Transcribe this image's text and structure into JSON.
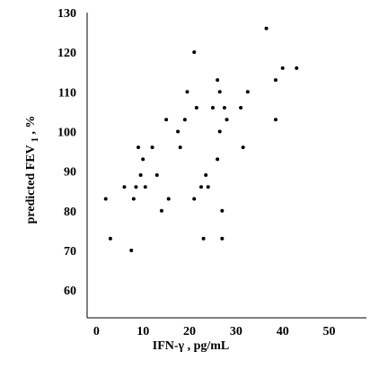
{
  "chart_data": {
    "type": "scatter",
    "title": "",
    "xlabel": "IFN-γ , pg/mL",
    "ylabel_main": "predicted FEV",
    "ylabel_sub": "1",
    "ylabel_tail": ", %",
    "xlim": [
      -2,
      58
    ],
    "ylim": [
      53,
      130
    ],
    "xticks": [
      0,
      10,
      20,
      30,
      40,
      50
    ],
    "yticks": [
      60,
      70,
      80,
      90,
      100,
      110,
      120,
      130
    ],
    "grid": false,
    "legend": "none",
    "marker_color": "#000000",
    "points": [
      [
        2,
        83
      ],
      [
        3,
        73
      ],
      [
        6,
        86
      ],
      [
        7.5,
        70
      ],
      [
        8,
        83
      ],
      [
        8.5,
        86
      ],
      [
        9,
        96
      ],
      [
        9.5,
        89
      ],
      [
        10,
        93
      ],
      [
        10.5,
        86
      ],
      [
        12,
        96
      ],
      [
        13,
        89
      ],
      [
        14,
        80
      ],
      [
        15,
        103
      ],
      [
        15.5,
        83
      ],
      [
        17.5,
        100
      ],
      [
        18,
        96
      ],
      [
        19,
        103
      ],
      [
        19.5,
        110
      ],
      [
        21,
        83
      ],
      [
        21,
        120
      ],
      [
        21.5,
        106
      ],
      [
        22.5,
        86
      ],
      [
        23,
        73
      ],
      [
        23.5,
        89
      ],
      [
        24,
        86
      ],
      [
        25,
        106
      ],
      [
        26,
        113
      ],
      [
        26,
        93
      ],
      [
        26.5,
        100
      ],
      [
        26.5,
        110
      ],
      [
        27,
        80
      ],
      [
        27,
        73
      ],
      [
        27.5,
        106
      ],
      [
        28,
        103
      ],
      [
        31,
        106
      ],
      [
        31.5,
        96
      ],
      [
        32.5,
        110
      ],
      [
        36.5,
        126
      ],
      [
        38.5,
        113
      ],
      [
        38.5,
        103
      ],
      [
        40,
        116
      ],
      [
        43,
        116
      ]
    ]
  }
}
